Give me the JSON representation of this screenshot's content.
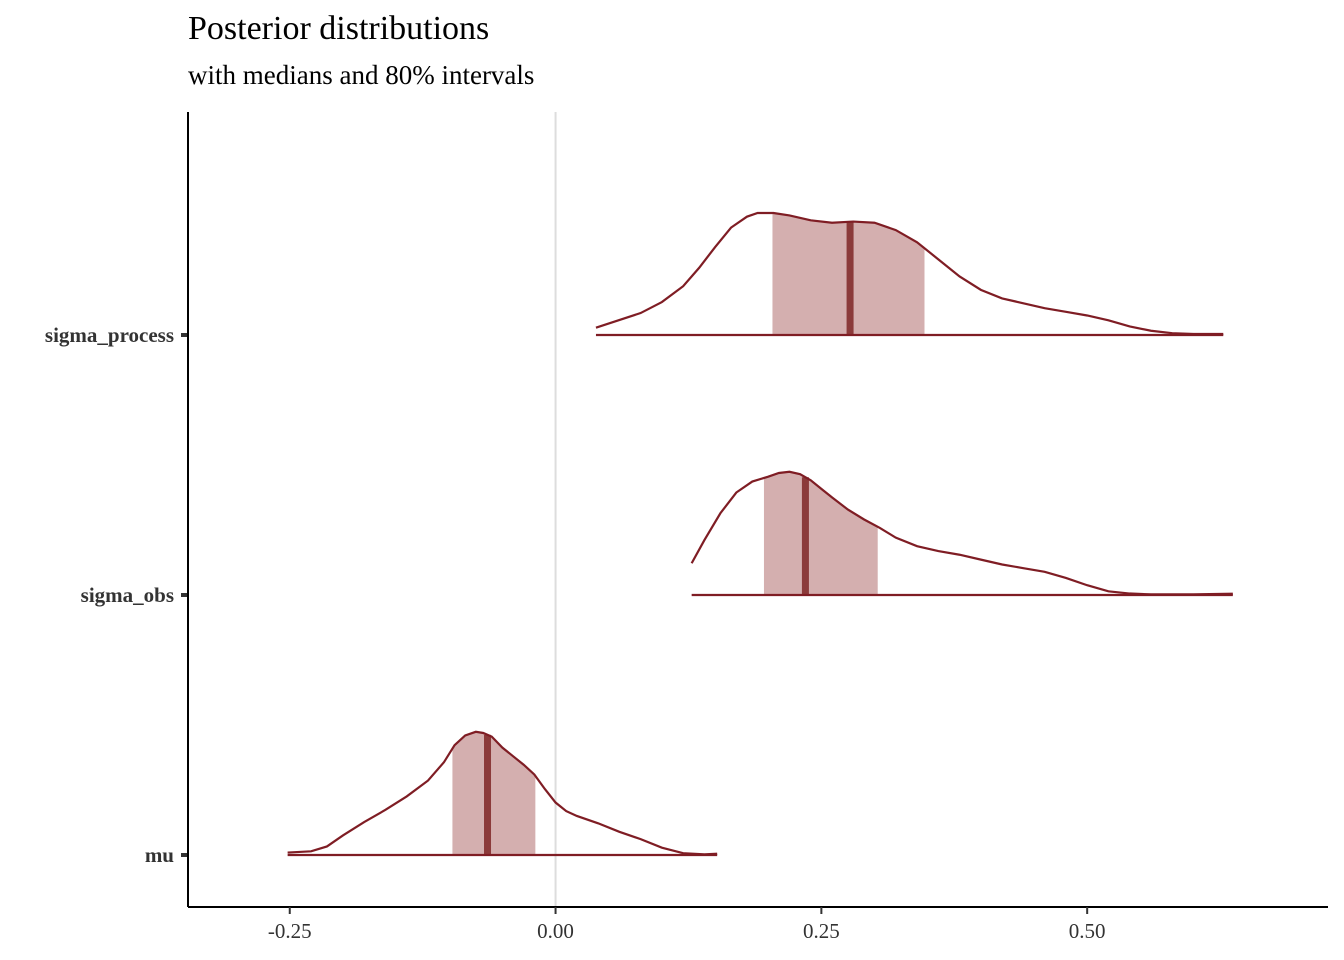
{
  "chart_data": {
    "type": "area",
    "title": "Posterior distributions",
    "subtitle": "with medians and 80% intervals",
    "xlabel": "",
    "ylabel": "",
    "xlim": [
      -0.3457,
      0.7265
    ],
    "x_ticks": [
      -0.25,
      0.0,
      0.25,
      0.5
    ],
    "x_tick_labels": [
      "-0.25",
      "0.00",
      "0.25",
      "0.50"
    ],
    "categories": [
      "sigma_process",
      "sigma_obs",
      "mu"
    ],
    "reference_line_x": 0,
    "grid": false,
    "colors": {
      "line": "#7f1d24",
      "fill": "#d4afaf",
      "median": "#8b3a3a",
      "zero_line": "#dddddd",
      "axis": "#000000"
    },
    "series": [
      {
        "name": "sigma_process",
        "median": 0.277,
        "interval_80": [
          0.204,
          0.347
        ],
        "density": [
          [
            0.038,
            0.06
          ],
          [
            0.08,
            0.18
          ],
          [
            0.1,
            0.27
          ],
          [
            0.12,
            0.4
          ],
          [
            0.135,
            0.55
          ],
          [
            0.15,
            0.72
          ],
          [
            0.165,
            0.88
          ],
          [
            0.18,
            0.97
          ],
          [
            0.19,
            1.0
          ],
          [
            0.205,
            1.0
          ],
          [
            0.22,
            0.98
          ],
          [
            0.24,
            0.94
          ],
          [
            0.26,
            0.92
          ],
          [
            0.28,
            0.93
          ],
          [
            0.3,
            0.92
          ],
          [
            0.32,
            0.86
          ],
          [
            0.34,
            0.76
          ],
          [
            0.36,
            0.62
          ],
          [
            0.38,
            0.48
          ],
          [
            0.4,
            0.37
          ],
          [
            0.42,
            0.3
          ],
          [
            0.44,
            0.26
          ],
          [
            0.46,
            0.22
          ],
          [
            0.48,
            0.19
          ],
          [
            0.5,
            0.16
          ],
          [
            0.52,
            0.12
          ],
          [
            0.54,
            0.07
          ],
          [
            0.56,
            0.035
          ],
          [
            0.58,
            0.015
          ],
          [
            0.6,
            0.008
          ],
          [
            0.628,
            0.008
          ]
        ]
      },
      {
        "name": "sigma_obs",
        "median": 0.235,
        "interval_80": [
          0.196,
          0.303
        ],
        "density": [
          [
            0.128,
            0.26
          ],
          [
            0.14,
            0.45
          ],
          [
            0.155,
            0.67
          ],
          [
            0.17,
            0.84
          ],
          [
            0.185,
            0.93
          ],
          [
            0.2,
            0.97
          ],
          [
            0.21,
            1.0
          ],
          [
            0.22,
            1.01
          ],
          [
            0.23,
            0.99
          ],
          [
            0.24,
            0.94
          ],
          [
            0.25,
            0.87
          ],
          [
            0.26,
            0.8
          ],
          [
            0.275,
            0.7
          ],
          [
            0.29,
            0.62
          ],
          [
            0.305,
            0.55
          ],
          [
            0.32,
            0.47
          ],
          [
            0.34,
            0.4
          ],
          [
            0.36,
            0.36
          ],
          [
            0.38,
            0.33
          ],
          [
            0.4,
            0.29
          ],
          [
            0.42,
            0.25
          ],
          [
            0.44,
            0.22
          ],
          [
            0.46,
            0.19
          ],
          [
            0.48,
            0.14
          ],
          [
            0.5,
            0.08
          ],
          [
            0.52,
            0.03
          ],
          [
            0.54,
            0.012
          ],
          [
            0.56,
            0.005
          ],
          [
            0.6,
            0.005
          ],
          [
            0.637,
            0.01
          ]
        ]
      },
      {
        "name": "mu",
        "median": -0.064,
        "interval_80": [
          -0.097,
          -0.019
        ],
        "density": [
          [
            -0.252,
            0.02
          ],
          [
            -0.23,
            0.03
          ],
          [
            -0.215,
            0.07
          ],
          [
            -0.2,
            0.16
          ],
          [
            -0.18,
            0.27
          ],
          [
            -0.16,
            0.37
          ],
          [
            -0.14,
            0.48
          ],
          [
            -0.12,
            0.61
          ],
          [
            -0.105,
            0.76
          ],
          [
            -0.095,
            0.9
          ],
          [
            -0.085,
            0.98
          ],
          [
            -0.075,
            1.01
          ],
          [
            -0.068,
            1.0
          ],
          [
            -0.06,
            0.97
          ],
          [
            -0.05,
            0.88
          ],
          [
            -0.04,
            0.81
          ],
          [
            -0.03,
            0.74
          ],
          [
            -0.02,
            0.66
          ],
          [
            -0.01,
            0.54
          ],
          [
            0.0,
            0.43
          ],
          [
            0.01,
            0.36
          ],
          [
            0.02,
            0.32
          ],
          [
            0.04,
            0.26
          ],
          [
            0.06,
            0.19
          ],
          [
            0.08,
            0.13
          ],
          [
            0.1,
            0.06
          ],
          [
            0.12,
            0.015
          ],
          [
            0.14,
            0.005
          ],
          [
            0.152,
            0.01
          ]
        ]
      }
    ]
  }
}
